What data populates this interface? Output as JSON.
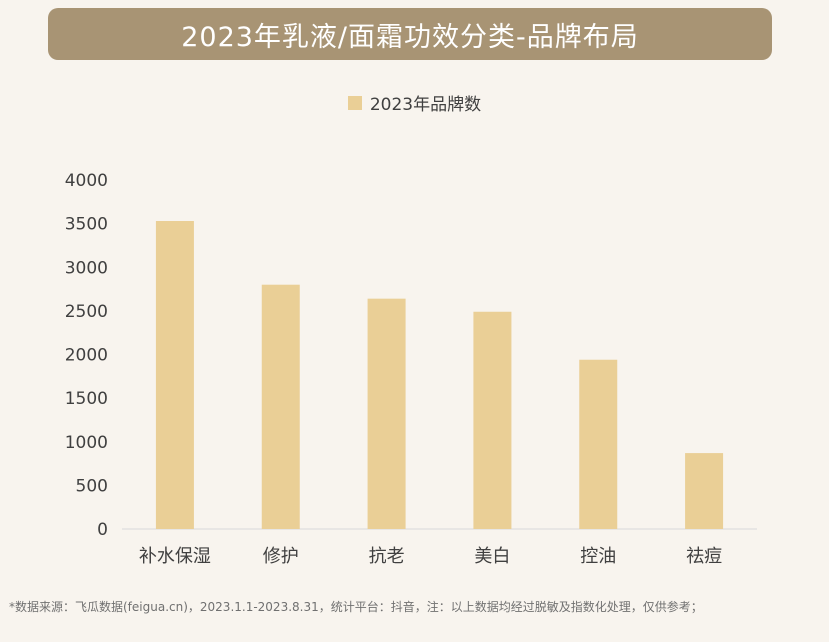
{
  "title": "2023年乳液/面霜功效分类-品牌布局",
  "footnote": "*数据来源：飞瓜数据(feigua.cn)，2023.1.1-2023.8.31，统计平台：抖音，注：以上数据均经过脱敏及指数化处理，仅供参考；",
  "colors": {
    "banner": "#a89474",
    "bar": "#eacf96",
    "background": "#f8f4ee"
  },
  "chart_data": {
    "type": "bar",
    "title": "2023年乳液/面霜功效分类-品牌布局",
    "categories": [
      "补水保湿",
      "修护",
      "抗老",
      "美白",
      "控油",
      "祛痘"
    ],
    "series": [
      {
        "name": "2023年品牌数",
        "values": [
          3530,
          2800,
          2640,
          2490,
          1940,
          870
        ]
      }
    ],
    "ylim": [
      0,
      4000
    ],
    "yticks": [
      "0",
      "500",
      "1000",
      "1500",
      "2000",
      "2500",
      "3000",
      "3500",
      "4000"
    ],
    "xlabel": "",
    "ylabel": "",
    "legend_position": "top",
    "grid": false
  }
}
